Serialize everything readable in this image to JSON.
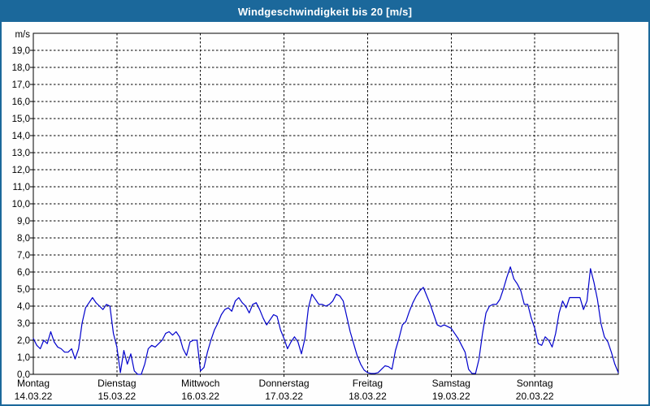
{
  "window": {
    "title": "Windgeschwindigkeit bis 20 [m/s]"
  },
  "chart_data": {
    "type": "line",
    "title": "Windgeschwindigkeit bis 20 [m/s]",
    "unit_label": "m/s",
    "grid": true,
    "legend_position": "none",
    "y_axis": {
      "min": 0,
      "max": 20,
      "step": 1,
      "tick_labels": [
        "0,0",
        "1,0",
        "2,0",
        "3,0",
        "4,0",
        "5,0",
        "6,0",
        "7,0",
        "8,0",
        "9,0",
        "10,0",
        "11,0",
        "12,0",
        "13,0",
        "14,0",
        "15,0",
        "16,0",
        "17,0",
        "18,0",
        "19,0"
      ]
    },
    "x_axis": {
      "days": [
        {
          "label": "Montag",
          "date": "14.03.22"
        },
        {
          "label": "Dienstag",
          "date": "15.03.22"
        },
        {
          "label": "Mittwoch",
          "date": "16.03.22"
        },
        {
          "label": "Donnerstag",
          "date": "17.03.22"
        },
        {
          "label": "Freitag",
          "date": "18.03.22"
        },
        {
          "label": "Samstag",
          "date": "19.03.22"
        },
        {
          "label": "Sonntag",
          "date": "20.03.22"
        }
      ]
    },
    "series": [
      {
        "name": "Windgeschwindigkeit",
        "unit": "m/s",
        "sampling": "hourly, 7 days (Mon 14.03.22 00:00 - Sun 20.03.22 24:00)",
        "values": [
          2.1,
          1.7,
          1.5,
          2.0,
          1.8,
          2.5,
          1.9,
          1.6,
          1.5,
          1.3,
          1.3,
          1.5,
          0.9,
          1.5,
          3.0,
          3.9,
          4.2,
          4.5,
          4.2,
          4.0,
          3.8,
          4.1,
          4.0,
          2.4,
          1.6,
          0.1,
          1.4,
          0.6,
          1.2,
          0.2,
          0.0,
          0.0,
          0.6,
          1.5,
          1.7,
          1.6,
          1.8,
          2.0,
          2.4,
          2.5,
          2.3,
          2.5,
          2.2,
          1.5,
          1.1,
          1.9,
          2.0,
          2.0,
          0.2,
          0.4,
          1.3,
          2.0,
          2.6,
          3.0,
          3.5,
          3.8,
          3.9,
          3.7,
          4.3,
          4.5,
          4.2,
          4.0,
          3.6,
          4.1,
          4.2,
          3.8,
          3.3,
          2.9,
          3.2,
          3.5,
          3.4,
          2.6,
          2.1,
          1.5,
          1.9,
          2.2,
          1.9,
          1.2,
          2.1,
          3.9,
          4.7,
          4.4,
          4.1,
          4.1,
          4.0,
          4.1,
          4.3,
          4.7,
          4.6,
          4.3,
          3.4,
          2.5,
          1.8,
          1.1,
          0.6,
          0.25,
          0.1,
          0.05,
          0.05,
          0.1,
          0.3,
          0.5,
          0.45,
          0.3,
          1.4,
          2.1,
          2.9,
          3.1,
          3.7,
          4.2,
          4.6,
          4.9,
          5.1,
          4.6,
          4.1,
          3.5,
          2.9,
          2.8,
          2.9,
          2.8,
          2.7,
          2.4,
          2.1,
          1.7,
          1.3,
          0.3,
          0.05,
          0.05,
          0.9,
          2.4,
          3.6,
          4.0,
          4.1,
          4.1,
          4.4,
          5.0,
          5.7,
          6.3,
          5.6,
          5.3,
          4.9,
          4.1,
          4.1,
          3.3,
          2.7,
          1.8,
          1.7,
          2.2,
          2.0,
          1.6,
          2.4,
          3.6,
          4.3,
          3.9,
          4.5,
          4.5,
          4.5,
          4.5,
          3.8,
          4.3,
          6.2,
          5.4,
          4.4,
          3.0,
          2.2,
          1.9,
          1.3,
          0.6,
          0.1
        ]
      }
    ],
    "colors": {
      "titlebar": "#1b689b",
      "window_border": "#1b689b",
      "line": "#0000cc",
      "grid": "#000000",
      "axis": "#000000",
      "background": "#ffffff"
    }
  }
}
